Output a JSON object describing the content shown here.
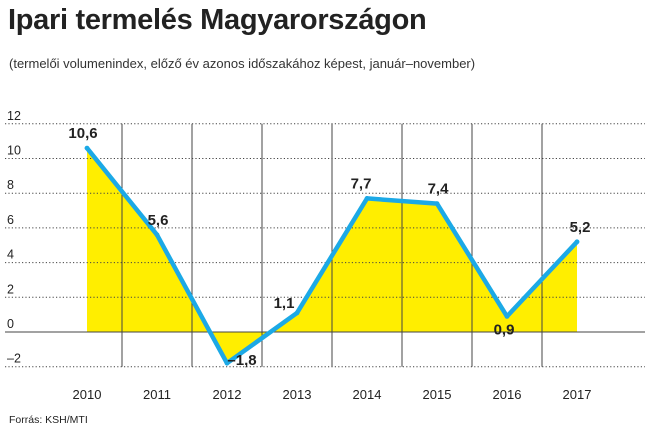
{
  "title": "Ipari termelés Magyarországon",
  "subtitle": "(termelői volumenindex, előző év azonos időszakához képest, január–november)",
  "source": "Forrás: KSH/MTI",
  "colors": {
    "fill": "#ffee00",
    "line": "#1ca9e6",
    "grid": "#444444",
    "text": "#222222"
  },
  "chart_data": {
    "type": "area",
    "categories": [
      "2010",
      "2011",
      "2012",
      "2013",
      "2014",
      "2015",
      "2016",
      "2017"
    ],
    "values": [
      10.6,
      5.6,
      -1.8,
      1.1,
      7.7,
      7.4,
      0.9,
      5.2
    ],
    "value_labels": [
      "10,6",
      "5,6",
      "–1,8",
      "1,1",
      "7,7",
      "7,4",
      "0,9",
      "5,2"
    ],
    "yticks": [
      12,
      10,
      8,
      6,
      4,
      2,
      0,
      -2
    ],
    "ytick_labels": [
      "12",
      "10",
      "8",
      "6",
      "4",
      "2",
      "0",
      "–2"
    ],
    "ylim": [
      -2,
      12
    ],
    "grid": true
  }
}
